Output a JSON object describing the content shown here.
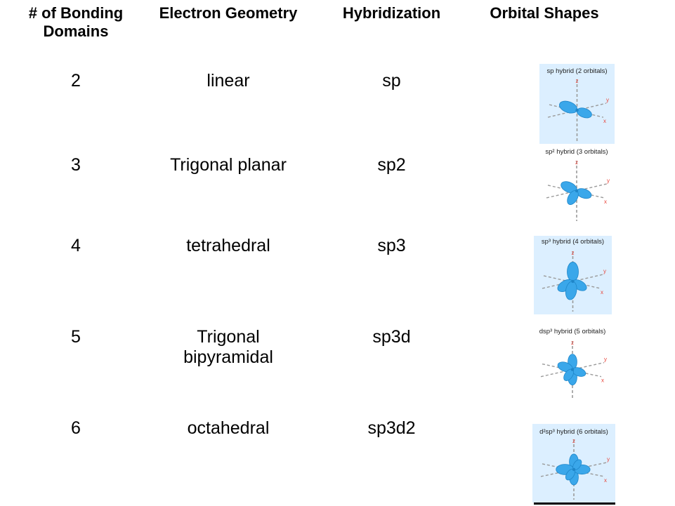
{
  "headers": {
    "domains": "# of Bonding Domains",
    "geometry": "Electron Geometry",
    "hybridization": "Hybridization",
    "shapes": "Orbital Shapes"
  },
  "rows": [
    {
      "domains": "2",
      "geometry": "linear",
      "hybridization": "sp",
      "caption": "sp hybrid (2 orbitals)"
    },
    {
      "domains": "3",
      "geometry": "Trigonal planar",
      "hybridization": "sp2",
      "caption": "sp² hybrid (3 orbitals)"
    },
    {
      "domains": "4",
      "geometry": "tetrahedral",
      "hybridization": "sp3",
      "caption": "sp³ hybrid (4 orbitals)"
    },
    {
      "domains": "5",
      "geometry": "Trigonal bipyramidal",
      "hybridization": "sp3d",
      "caption": "dsp³ hybrid (5 orbitals)"
    },
    {
      "domains": "6",
      "geometry": "octahedral",
      "hybridization": "sp3d2",
      "caption": "d²sp³ hybrid (6 orbitals)"
    }
  ],
  "axis_labels": {
    "z": "z",
    "y": "y",
    "x": "x"
  },
  "colors": {
    "lobe_fill": "#3aa7ea",
    "lobe_stroke": "#1f86c9",
    "axis": "#9a9a9a",
    "axis_label": "#e8443a",
    "panel_bg": "#dcefff"
  }
}
